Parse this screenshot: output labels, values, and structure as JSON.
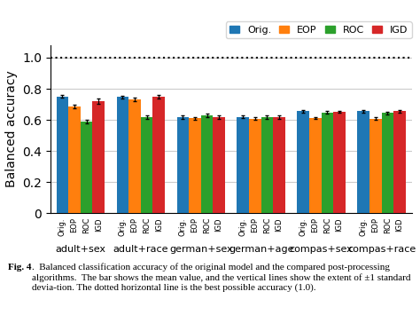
{
  "chart_data": {
    "type": "bar",
    "ylabel": "Balanced accuracy",
    "categories": [
      "adult+sex",
      "adult+race",
      "german+sex",
      "german+age",
      "compas+sex",
      "compas+race"
    ],
    "series": [
      {
        "name": "Orig.",
        "values": [
          0.75,
          0.748,
          0.618,
          0.62,
          0.655,
          0.655
        ],
        "errors": [
          0.008,
          0.008,
          0.01,
          0.01,
          0.008,
          0.008
        ]
      },
      {
        "name": "EOP",
        "values": [
          0.685,
          0.733,
          0.61,
          0.608,
          0.612,
          0.608
        ],
        "errors": [
          0.01,
          0.01,
          0.01,
          0.01,
          0.008,
          0.008
        ]
      },
      {
        "name": "ROC",
        "values": [
          0.59,
          0.618,
          0.63,
          0.618,
          0.648,
          0.645
        ],
        "errors": [
          0.012,
          0.012,
          0.01,
          0.01,
          0.008,
          0.008
        ]
      },
      {
        "name": "IGD",
        "values": [
          0.72,
          0.748,
          0.618,
          0.618,
          0.652,
          0.655
        ],
        "errors": [
          0.015,
          0.01,
          0.01,
          0.01,
          0.008,
          0.008
        ]
      }
    ],
    "ylim": [
      0,
      1.08
    ],
    "yticks": [
      0,
      0.2,
      0.4,
      0.6,
      0.8,
      1.0
    ],
    "grid": true,
    "legend": "upper right",
    "reference_line": 1.0,
    "annotations": [
      "Fig. 4",
      ".  Balanced classification accuracy of the original model and the compared post-processing algorithms.  The bar shows the mean value, and the vertical lines show the extent of ±1 standard devia-tion. The dotted horizontal line is the best possible accuracy (1.0)."
    ]
  }
}
